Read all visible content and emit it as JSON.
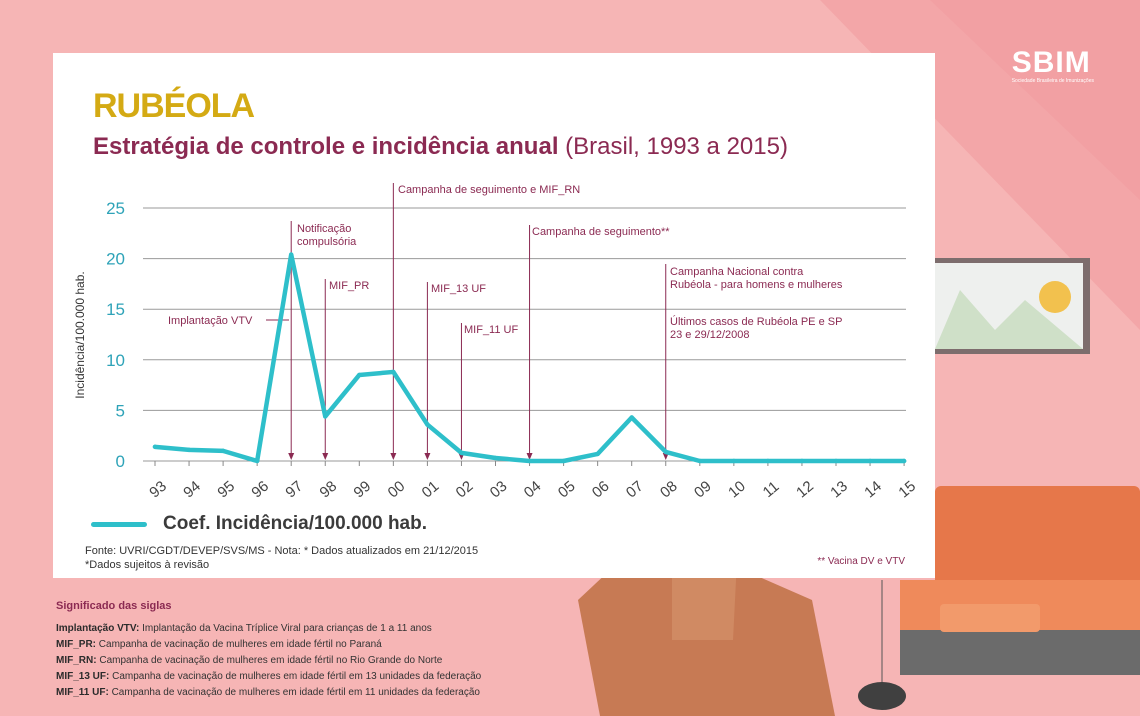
{
  "logo": {
    "text": "SBIM",
    "tagline": "Sociedade Brasileira de Imunizações"
  },
  "title": "RUBÉOLA",
  "subtitle": {
    "main": "Estratégia de controle e incidência anual",
    "paren": "(Brasil, 1993 a 2015)"
  },
  "colors": {
    "line": "#2ebfca",
    "title": "#d4aa14",
    "accent": "#8b2a52",
    "background": "#f6b5b5"
  },
  "chart_data": {
    "type": "line",
    "title": "Estratégia de controle e incidência anual (Brasil, 1993 a 2015)",
    "xlabel": "",
    "ylabel": "Incidência/100.000 hab.",
    "ylim": [
      0,
      25
    ],
    "yticks": [
      0,
      5,
      10,
      15,
      20,
      25
    ],
    "grid": true,
    "categories": [
      "93",
      "94",
      "95",
      "96",
      "97",
      "98",
      "99",
      "00",
      "01",
      "02",
      "03",
      "04",
      "05",
      "06",
      "07",
      "08",
      "09",
      "10",
      "11",
      "12",
      "13",
      "14",
      "15"
    ],
    "series": [
      {
        "name": "Coef. Incidência/100.000 hab.",
        "values": [
          1.4,
          1.1,
          1.0,
          0.0,
          20.4,
          4.4,
          8.5,
          8.8,
          3.6,
          0.8,
          0.3,
          0.0,
          0.0,
          0.7,
          4.3,
          0.9,
          0.0,
          0.0,
          0.0,
          0.0,
          0.0,
          0.0,
          0.0
        ]
      }
    ],
    "annotations": [
      {
        "text": "Implantação VTV",
        "x": "96",
        "lines": [
          "Implantação VTV"
        ]
      },
      {
        "text": "Notificação compulsória",
        "x": "97",
        "lines": [
          "Notificação",
          "compulsória"
        ]
      },
      {
        "text": "MIF_PR",
        "x": "98",
        "lines": [
          "MIF_PR"
        ]
      },
      {
        "text": "Campanha de seguimento e MIF_RN",
        "x": "00",
        "lines": [
          "Campanha de seguimento e MIF_RN"
        ]
      },
      {
        "text": "MIF_13 UF",
        "x": "01",
        "lines": [
          "MIF_13 UF"
        ]
      },
      {
        "text": "MIF_11 UF",
        "x": "02",
        "lines": [
          "MIF_11 UF"
        ]
      },
      {
        "text": "Campanha de seguimento**",
        "x": "04",
        "lines": [
          "Campanha de seguimento**"
        ]
      },
      {
        "text": "Campanha Nacional contra Rubéola - para homens e mulheres",
        "x": "08",
        "lines": [
          "Campanha Nacional contra",
          "Rubéola - para homens e mulheres"
        ]
      },
      {
        "text": "Últimos casos de Rubéola PE e SP 23 e 29/12/2008",
        "x": "08",
        "lines": [
          "Últimos casos de Rubéola PE e SP",
          "23 e 29/12/2008"
        ]
      }
    ]
  },
  "legend_label": "Coef. Incidência/100.000 hab.",
  "source": {
    "line1": "Fonte: UVRI/CGDT/DEVEP/SVS/MS  - Nota: * Dados atualizados em 21/12/2015",
    "line2": "*Dados sujeitos à revisão"
  },
  "footnote": "** Vacina DV e VTV",
  "siglas": {
    "heading": "Significado das siglas",
    "items": [
      {
        "term": "Implantação VTV:",
        "desc": "Implantação da Vacina Tríplice Viral para crianças de 1 a 11 anos"
      },
      {
        "term": "MIF_PR:",
        "desc": "Campanha de vacinação de mulheres em idade fértil no Paraná"
      },
      {
        "term": "MIF_RN:",
        "desc": "Campanha de vacinação de mulheres em idade fértil no Rio Grande do Norte"
      },
      {
        "term": "MIF_13 UF:",
        "desc": "Campanha de vacinação de mulheres em idade fértil em 13 unidades da federação"
      },
      {
        "term": "MIF_11 UF:",
        "desc": "Campanha de vacinação de mulheres em idade fértil em 11 unidades da federação"
      }
    ]
  }
}
